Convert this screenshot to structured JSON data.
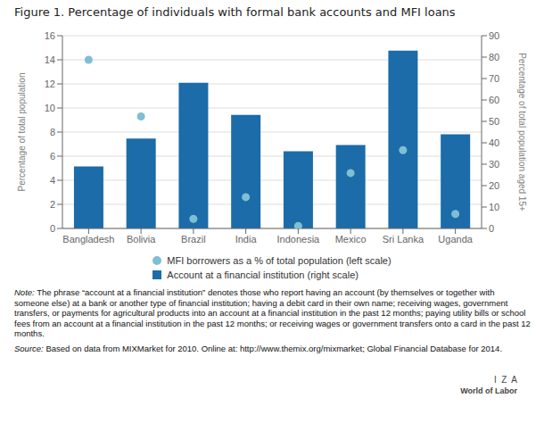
{
  "chart_data": {
    "type": "bar",
    "title": "Figure 1. Percentage of individuals with formal bank accounts and MFI loans",
    "categories": [
      "Bangladesh",
      "Bolivia",
      "Brazil",
      "India",
      "Indonesia",
      "Mexico",
      "Sri Lanka",
      "Uganda"
    ],
    "series": [
      {
        "name": "MFI borrowers as a % of total population (left scale)",
        "type": "scatter",
        "color": "#7fbfd4",
        "values": [
          14.0,
          9.3,
          0.8,
          2.6,
          0.2,
          4.6,
          6.5,
          1.2
        ]
      },
      {
        "name": "Account at a financial institution (right scale)",
        "type": "bar",
        "color": "#1b6ca8",
        "axis": "y2",
        "values": [
          29,
          42,
          68,
          53,
          36,
          39,
          83,
          44
        ]
      }
    ],
    "ylabel": "Percentage of total population",
    "y2label": "Percentage of total population aged 15+",
    "ylim": [
      0,
      16
    ],
    "yticks": [
      0,
      2,
      4,
      6,
      8,
      10,
      12,
      14,
      16
    ],
    "y2lim": [
      0,
      90
    ],
    "y2ticks": [
      0,
      10,
      20,
      30,
      40,
      50,
      60,
      70,
      80,
      90
    ],
    "grid": true,
    "legend": "bottom",
    "annotations": [
      "Note: The phrase “account at a financial institution” denotes those who report having an account (by themselves or together with someone else) at a bank or another type of financial institution; having a debit card in their own name; receiving wages, government transfers, or payments for agricultural products into an account at a financial institution in the past 12 months; paying utility bills or school fees from an account at a financial institution in the past 12 months; or receiving wages or government transfers onto a card in the past 12 months.",
      "Source: Based on data from MIXMarket for 2010. Online at: http://www.themix.org/mixmarket; Global Financial Database for 2014.",
      "I  Z  A",
      "World of Labor"
    ]
  }
}
